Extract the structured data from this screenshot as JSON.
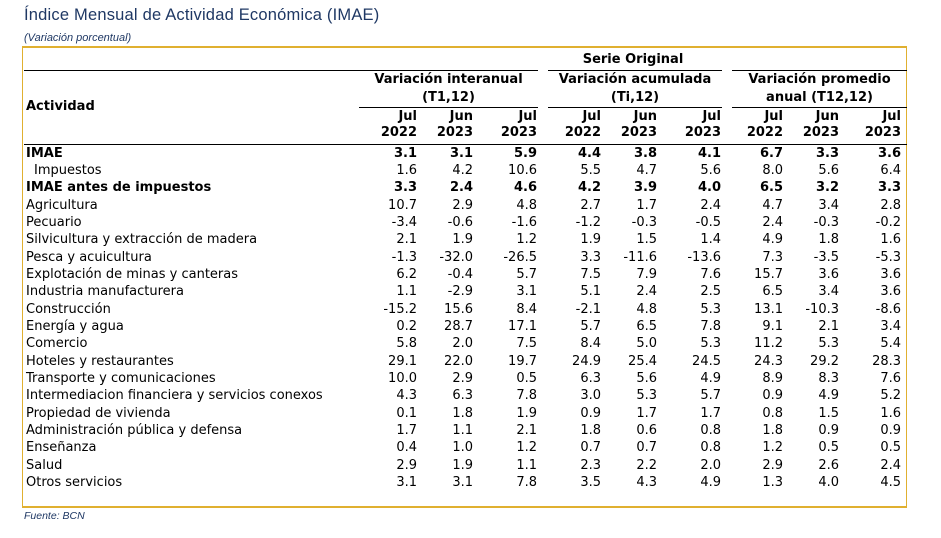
{
  "title": "Índice Mensual de Actividad Económica (IMAE)",
  "subtitle": "(Variación porcentual)",
  "header": {
    "serie": "Serie Original",
    "actividad": "Actividad",
    "groups": [
      "Variación interanual (T1,12)",
      "Variación acumulada (Ti,12)",
      "Variación promedio anual (T12,12)"
    ],
    "group_lines": [
      [
        "Variación interanual",
        "(T1,12)"
      ],
      [
        "Variación acumulada",
        "(Ti,12)"
      ],
      [
        "Variación promedio",
        "anual (T12,12)"
      ]
    ],
    "periods": [
      [
        "Jul",
        "2022"
      ],
      [
        "Jun",
        "2023"
      ],
      [
        "Jul",
        "2023"
      ],
      [
        "Jul",
        "2022"
      ],
      [
        "Jun",
        "2023"
      ],
      [
        "Jul",
        "2023"
      ],
      [
        "Jul",
        "2022"
      ],
      [
        "Jun",
        "2023"
      ],
      [
        "Jul",
        "2023"
      ]
    ]
  },
  "rows": [
    {
      "name": "IMAE",
      "bold": true,
      "indent": false,
      "values": [
        "3.1",
        "3.1",
        "5.9",
        "4.4",
        "3.8",
        "4.1",
        "6.7",
        "3.3",
        "3.6"
      ]
    },
    {
      "name": "Impuestos",
      "bold": false,
      "indent": true,
      "values": [
        "1.6",
        "4.2",
        "10.6",
        "5.5",
        "4.7",
        "5.6",
        "8.0",
        "5.6",
        "6.4"
      ]
    },
    {
      "name": "IMAE antes de impuestos",
      "bold": true,
      "indent": false,
      "values": [
        "3.3",
        "2.4",
        "4.6",
        "4.2",
        "3.9",
        "4.0",
        "6.5",
        "3.2",
        "3.3"
      ]
    },
    {
      "name": "Agricultura",
      "bold": false,
      "indent": false,
      "values": [
        "10.7",
        "2.9",
        "4.8",
        "2.7",
        "1.7",
        "2.4",
        "4.7",
        "3.4",
        "2.8"
      ]
    },
    {
      "name": "Pecuario",
      "bold": false,
      "indent": false,
      "values": [
        "-3.4",
        "-0.6",
        "-1.6",
        "-1.2",
        "-0.3",
        "-0.5",
        "2.4",
        "-0.3",
        "-0.2"
      ]
    },
    {
      "name": "Silvicultura y extracción de madera",
      "bold": false,
      "indent": false,
      "values": [
        "2.1",
        "1.9",
        "1.2",
        "1.9",
        "1.5",
        "1.4",
        "4.9",
        "1.8",
        "1.6"
      ]
    },
    {
      "name": "Pesca y acuicultura",
      "bold": false,
      "indent": false,
      "values": [
        "-1.3",
        "-32.0",
        "-26.5",
        "3.3",
        "-11.6",
        "-13.6",
        "7.3",
        "-3.5",
        "-5.3"
      ]
    },
    {
      "name": "Explotación de minas y canteras",
      "bold": false,
      "indent": false,
      "values": [
        "6.2",
        "-0.4",
        "5.7",
        "7.5",
        "7.9",
        "7.6",
        "15.7",
        "3.6",
        "3.6"
      ]
    },
    {
      "name": "Industria manufacturera",
      "bold": false,
      "indent": false,
      "values": [
        "1.1",
        "-2.9",
        "3.1",
        "5.1",
        "2.4",
        "2.5",
        "6.5",
        "3.4",
        "3.6"
      ]
    },
    {
      "name": "Construcción",
      "bold": false,
      "indent": false,
      "values": [
        "-15.2",
        "15.6",
        "8.4",
        "-2.1",
        "4.8",
        "5.3",
        "13.1",
        "-10.3",
        "-8.6"
      ]
    },
    {
      "name": "Energía y agua",
      "bold": false,
      "indent": false,
      "values": [
        "0.2",
        "28.7",
        "17.1",
        "5.7",
        "6.5",
        "7.8",
        "9.1",
        "2.1",
        "3.4"
      ]
    },
    {
      "name": "Comercio",
      "bold": false,
      "indent": false,
      "values": [
        "5.8",
        "2.0",
        "7.5",
        "8.4",
        "5.0",
        "5.3",
        "11.2",
        "5.3",
        "5.4"
      ]
    },
    {
      "name": "Hoteles y restaurantes",
      "bold": false,
      "indent": false,
      "values": [
        "29.1",
        "22.0",
        "19.7",
        "24.9",
        "25.4",
        "24.5",
        "24.3",
        "29.2",
        "28.3"
      ]
    },
    {
      "name": "Transporte y comunicaciones",
      "bold": false,
      "indent": false,
      "values": [
        "10.0",
        "2.9",
        "0.5",
        "6.3",
        "5.6",
        "4.9",
        "8.9",
        "8.3",
        "7.6"
      ]
    },
    {
      "name": "Intermediacion financiera y servicios conexos",
      "bold": false,
      "indent": false,
      "values": [
        "4.3",
        "6.3",
        "7.8",
        "3.0",
        "5.3",
        "5.7",
        "0.9",
        "4.9",
        "5.2"
      ]
    },
    {
      "name": "Propiedad de vivienda",
      "bold": false,
      "indent": false,
      "values": [
        "0.1",
        "1.8",
        "1.9",
        "0.9",
        "1.7",
        "1.7",
        "0.8",
        "1.5",
        "1.6"
      ]
    },
    {
      "name": "Administración pública y defensa",
      "bold": false,
      "indent": false,
      "values": [
        "1.7",
        "1.1",
        "2.1",
        "1.8",
        "0.6",
        "0.8",
        "1.8",
        "0.9",
        "0.9"
      ]
    },
    {
      "name": "Enseñanza",
      "bold": false,
      "indent": false,
      "values": [
        "0.4",
        "1.0",
        "1.2",
        "0.7",
        "0.7",
        "0.8",
        "1.2",
        "0.5",
        "0.5"
      ]
    },
    {
      "name": "Salud",
      "bold": false,
      "indent": false,
      "values": [
        "2.9",
        "1.9",
        "1.1",
        "2.3",
        "2.2",
        "2.0",
        "2.9",
        "2.6",
        "2.4"
      ]
    },
    {
      "name": "Otros servicios",
      "bold": false,
      "indent": false,
      "values": [
        "3.1",
        "3.1",
        "7.8",
        "3.5",
        "4.3",
        "4.9",
        "1.3",
        "4.0",
        "4.5"
      ]
    }
  ],
  "source": "Fuente: BCN"
}
